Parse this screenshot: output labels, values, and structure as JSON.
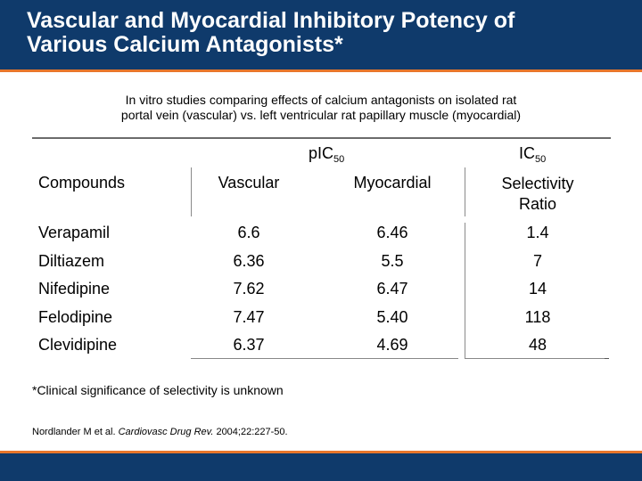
{
  "slide": {
    "title_line1": "Vascular and Myocardial Inhibitory Potency of",
    "title_line2": "Various Calcium Antagonists*",
    "subtitle_line1": "In vitro studies comparing effects of calcium antagonists on isolated rat",
    "subtitle_line2": "portal vein (vascular) vs. left ventricular rat papillary muscle (myocardial)"
  },
  "table": {
    "group_pic50": "pIC",
    "group_pic50_sub": "50",
    "group_ic50": "IC",
    "group_ic50_sub": "50",
    "headers": {
      "compounds": "Compounds",
      "vascular": "Vascular",
      "myocardial": "Myocardial",
      "selectivity_line1": "Selectivity",
      "selectivity_line2": "Ratio"
    },
    "rows": [
      {
        "compound": "Verapamil",
        "vascular": "6.6",
        "myocardial": "6.46",
        "ratio": "1.4"
      },
      {
        "compound": "Diltiazem",
        "vascular": "6.36",
        "myocardial": "5.5",
        "ratio": "7"
      },
      {
        "compound": "Nifedipine",
        "vascular": "7.62",
        "myocardial": "6.47",
        "ratio": "14"
      },
      {
        "compound": "Felodipine",
        "vascular": "7.47",
        "myocardial": "5.40",
        "ratio": "118"
      },
      {
        "compound": "Clevidipine",
        "vascular": "6.37",
        "myocardial": "4.69",
        "ratio": "48"
      }
    ]
  },
  "footnote": "*Clinical significance of selectivity is unknown",
  "citation": {
    "authors": "Nordlander M et al. ",
    "journal": "Cardiovasc Drug Rev.",
    "details": " 2004;22:227-50."
  },
  "colors": {
    "header_blue": "#0f3a6b",
    "accent_orange": "#e8762b"
  }
}
